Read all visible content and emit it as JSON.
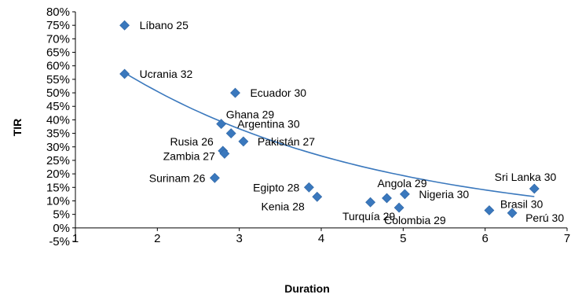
{
  "chart_data": {
    "type": "scatter",
    "xlabel": "Duration",
    "ylabel": "TIR",
    "xlim": [
      1,
      7
    ],
    "ylim": [
      -5,
      80
    ],
    "x_ticks": [
      1,
      2,
      3,
      4,
      5,
      6,
      7
    ],
    "y_ticks": [
      -5,
      0,
      5,
      10,
      15,
      20,
      25,
      30,
      35,
      40,
      45,
      50,
      55,
      60,
      65,
      70,
      75,
      80
    ],
    "y_tick_labels": [
      "-5%",
      "0%",
      "5%",
      "10%",
      "15%",
      "20%",
      "25%",
      "30%",
      "35%",
      "40%",
      "45%",
      "50%",
      "55%",
      "60%",
      "65%",
      "70%",
      "75%",
      "80%"
    ],
    "grid": false,
    "legend": "none",
    "marker": "diamond",
    "color": "#3A78BD",
    "trendline": {
      "type": "exponential",
      "a": 95.8,
      "b": -0.32,
      "x_range": [
        1.6,
        6.6
      ]
    },
    "points": [
      {
        "label": "Líbano 25",
        "x": 1.6,
        "y": 75
      },
      {
        "label": "Ucrania 32",
        "x": 1.6,
        "y": 57
      },
      {
        "label": "Ecuador 30",
        "x": 2.95,
        "y": 50
      },
      {
        "label": "Ghana 29",
        "x": 2.78,
        "y": 38.5
      },
      {
        "label": "Argentina 30",
        "x": 2.9,
        "y": 35
      },
      {
        "label": "Pakistán 27",
        "x": 3.05,
        "y": 32
      },
      {
        "label": "Rusia 26",
        "x": 2.8,
        "y": 28.5
      },
      {
        "label": "Zambia 27",
        "x": 2.82,
        "y": 27.5
      },
      {
        "label": "Surinam 26",
        "x": 2.7,
        "y": 18.5
      },
      {
        "label": "Egipto 28",
        "x": 3.85,
        "y": 15
      },
      {
        "label": "Kenia 28",
        "x": 3.95,
        "y": 11.5
      },
      {
        "label": "Turquía 29",
        "x": 4.6,
        "y": 9.5
      },
      {
        "label": "Angola 29",
        "x": 4.8,
        "y": 11
      },
      {
        "label": "Colombia 29",
        "x": 4.95,
        "y": 7.5
      },
      {
        "label": "Nigeria 30",
        "x": 5.02,
        "y": 12.5
      },
      {
        "label": "Brasil 30",
        "x": 6.05,
        "y": 6.5
      },
      {
        "label": "Perú 30",
        "x": 6.33,
        "y": 5.5
      },
      {
        "label": "Sri Lanka 30",
        "x": 6.6,
        "y": 14.5
      }
    ]
  }
}
